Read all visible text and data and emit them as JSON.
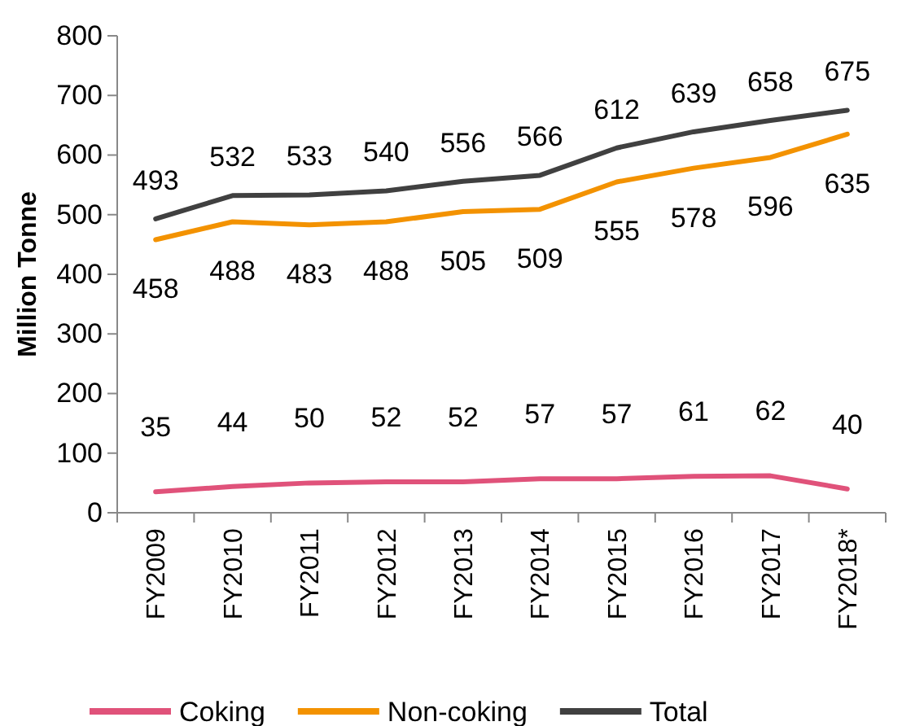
{
  "chart_data": {
    "type": "line",
    "ylabel": "Million Tonne",
    "categories": [
      "FY2009",
      "FY2010",
      "FY2011",
      "FY2012",
      "FY2013",
      "FY2014",
      "FY2015",
      "FY2016",
      "FY2017",
      "FY2018*"
    ],
    "series": [
      {
        "name": "Coking",
        "color": "#e0527a",
        "values": [
          35,
          44,
          50,
          52,
          52,
          57,
          57,
          61,
          62,
          40
        ]
      },
      {
        "name": "Non-coking",
        "color": "#f39200",
        "values": [
          458,
          488,
          483,
          488,
          505,
          509,
          555,
          578,
          596,
          635
        ]
      },
      {
        "name": "Total",
        "color": "#404040",
        "values": [
          493,
          532,
          533,
          540,
          556,
          566,
          612,
          639,
          658,
          675
        ]
      }
    ],
    "ylim": [
      0,
      800
    ],
    "yticks": [
      0,
      100,
      200,
      300,
      400,
      500,
      600,
      700,
      800
    ],
    "grid": false,
    "legend": "bottom",
    "marker": "none",
    "line_style": "solid",
    "data_labels": true
  }
}
